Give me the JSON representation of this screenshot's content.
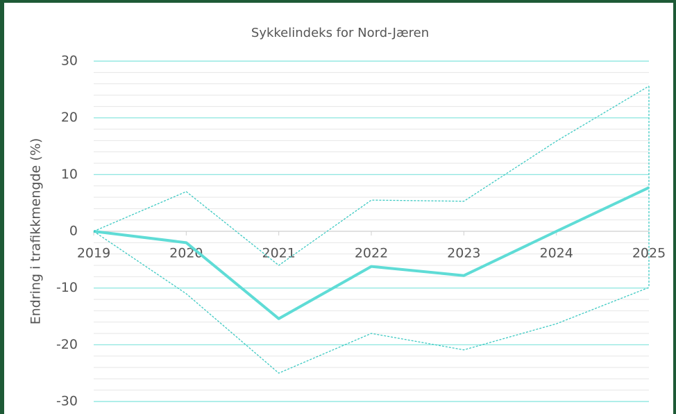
{
  "chart_data": {
    "type": "line",
    "title": "Sykkelindeks for Nord-Jæren",
    "y_label": "Endring i trafikkmengde (%)",
    "categories": [
      "2019",
      "2020",
      "2021",
      "2022",
      "2023",
      "2024",
      "2025"
    ],
    "series": [
      {
        "color": "#5fdcd6",
        "style": "solid",
        "values": [
          0,
          -2,
          -15.4,
          -6.2,
          -7.8,
          0,
          7.7
        ]
      },
      {
        "color": "#3cc9c2",
        "style": "dashed",
        "values": [
          0,
          7,
          -6,
          5.5,
          5.3,
          15.9,
          25.6
        ]
      },
      {
        "color": "#3cc9c2",
        "style": "dashed",
        "values": [
          0,
          -11,
          -25,
          -18,
          -20.9,
          -16.3,
          -9.9
        ]
      }
    ],
    "ylim": [
      -30,
      30
    ],
    "yticks": [
      30,
      20,
      10,
      0,
      -10,
      -20,
      -30
    ],
    "grid": true,
    "minor_grid": true
  }
}
